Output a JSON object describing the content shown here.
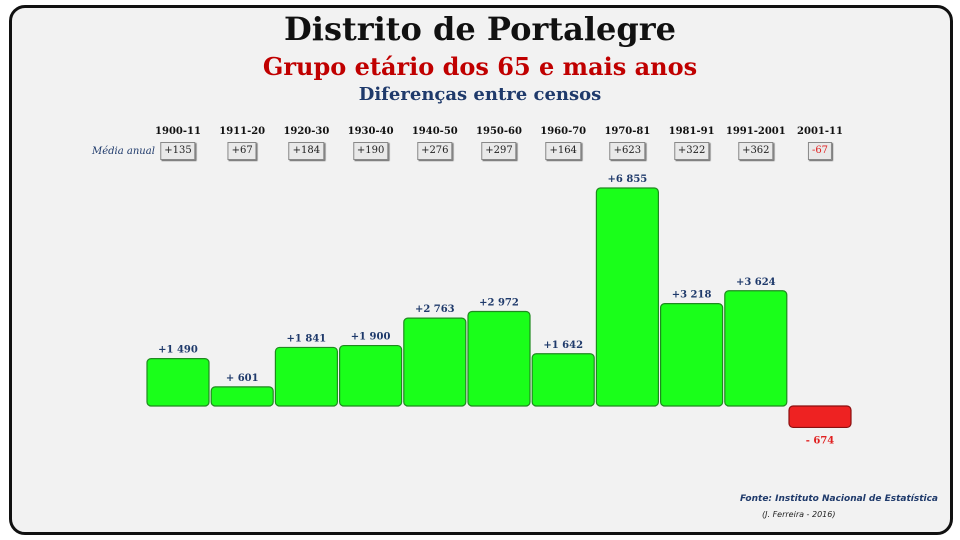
{
  "page": {
    "title": "Distrito de Portalegre",
    "subtitle": "Grupo etário dos 65 e mais anos",
    "subtitle2": "Diferenças entre censos",
    "media_label": "Média anual",
    "source": "Fonte: Instituto Nacional de Estatística",
    "author": "(J. Ferreira - 2016)"
  },
  "chart_data": {
    "type": "bar",
    "categories": [
      "1900-11",
      "1911-20",
      "1920-30",
      "1930-40",
      "1940-50",
      "1950-60",
      "1960-70",
      "1970-81",
      "1981-91",
      "1991-2001",
      "2001-11"
    ],
    "values": [
      1490,
      601,
      1841,
      1900,
      2763,
      2972,
      1642,
      6855,
      3218,
      3624,
      -674
    ],
    "data_labels": [
      "+1 490",
      "+ 601",
      "+1 841",
      "+1 900",
      "+2 763",
      "+2 972",
      "+1 642",
      "+6 855",
      "+3 218",
      "+3 624",
      "- 674"
    ],
    "annual_average": [
      "+135",
      "+67",
      "+184",
      "+190",
      "+276",
      "+297",
      "+164",
      "+623",
      "+322",
      "+362",
      "-67"
    ],
    "colors": {
      "positive": "#1aff1a",
      "negative": "#ee2222"
    }
  }
}
